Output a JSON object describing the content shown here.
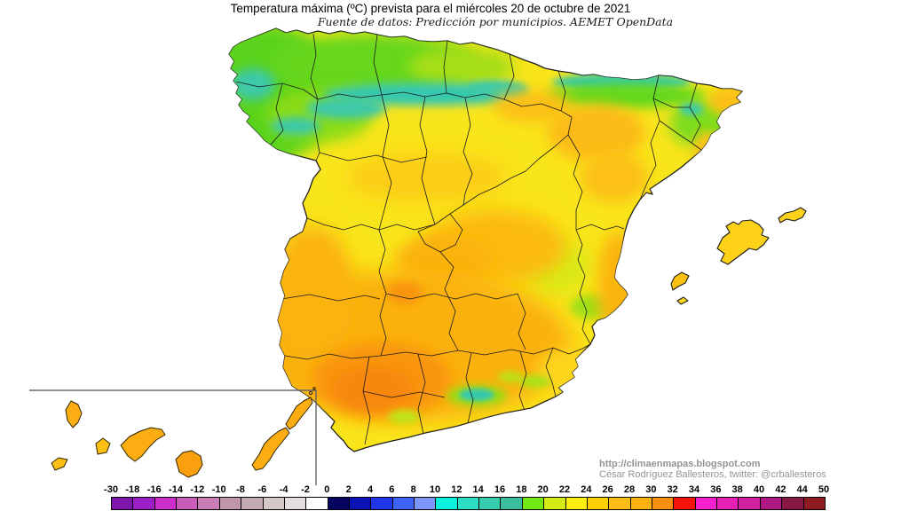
{
  "title": "Temperatura máxima (ºC) prevista para el miércoles 20 de octubre de 2021",
  "subtitle": "Fuente de datos: Predicción por municipios. AEMET OpenData",
  "credits": {
    "line1": "http://climaenmapas.blogspot.com",
    "line2": "César Rodríguez Ballesteros, twitter: @crballesteros"
  },
  "map": {
    "region": "Spain peninsular, Baleares y Canarias",
    "unit": "ºC",
    "palette": {
      "base_yellow": "#f9e51b",
      "green": "#5ad31d",
      "teal": "#35c8ae",
      "yellow_green": "#d9e915",
      "orange": "#fbb110",
      "deep_orange": "#f8870a",
      "island_orange": "#fbad12",
      "outline": "#1c1c1c",
      "inset_border": "#666666"
    }
  },
  "colorbar": {
    "labels": [
      "-30",
      "-18",
      "-16",
      "-14",
      "-12",
      "-10",
      "-8",
      "-6",
      "-4",
      "-2",
      "0",
      "2",
      "4",
      "6",
      "8",
      "10",
      "12",
      "14",
      "16",
      "18",
      "20",
      "22",
      "24",
      "26",
      "28",
      "30",
      "32",
      "34",
      "36",
      "38",
      "40",
      "42",
      "44",
      "50"
    ],
    "colors": [
      "#7d16ad",
      "#9b1fc4",
      "#ce2ecb",
      "#c95cb8",
      "#c97fb6",
      "#c195ab",
      "#c3a9b1",
      "#d3c8c3",
      "#e3dfdf",
      "#ffffff",
      "#05055f",
      "#0a14b4",
      "#2136e8",
      "#3f62fa",
      "#7e97fb",
      "#0cf0de",
      "#2cdcc4",
      "#37ccae",
      "#3cbd9d",
      "#72e912",
      "#d6ea15",
      "#fdef11",
      "#fdd100",
      "#fdbd17",
      "#fbb110",
      "#f98d0c",
      "#f5130c",
      "#f620ce",
      "#e620b5",
      "#d01f9f",
      "#b01883",
      "#871843",
      "#8e1b22"
    ]
  }
}
